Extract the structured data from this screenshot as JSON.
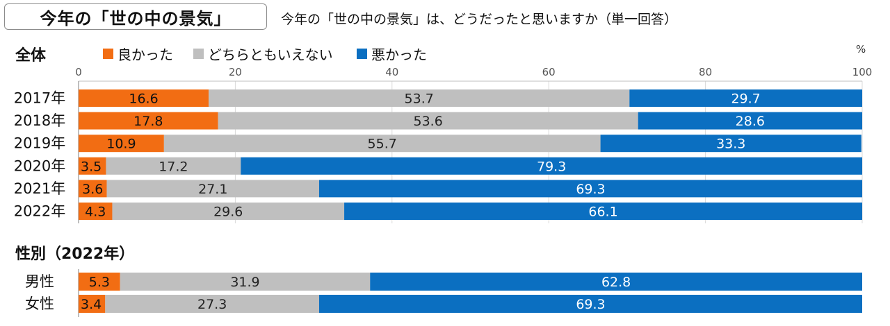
{
  "header": {
    "title": "今年の「世の中の景気」",
    "question": "今年の「世の中の景気」は、どうだったと思いますか（単一回答）"
  },
  "colors": {
    "good": "#f26d13",
    "neutral": "#bfbfbf",
    "bad": "#0b6fc1"
  },
  "chart_data": {
    "type": "bar",
    "orientation": "horizontal-stacked-100",
    "unit_label": "%",
    "xlim": [
      0,
      100
    ],
    "xticks": [
      "0",
      "20",
      "40",
      "60",
      "80",
      "100"
    ],
    "legend": [
      "良かった",
      "どちらともいえない",
      "悪かった"
    ],
    "groups": [
      {
        "section_label": "全体",
        "categories": [
          "2017年",
          "2018年",
          "2019年",
          "2020年",
          "2021年",
          "2022年"
        ],
        "series": [
          {
            "name": "良かった",
            "values": [
              16.6,
              17.8,
              10.9,
              3.5,
              3.6,
              4.3
            ]
          },
          {
            "name": "どちらともいえない",
            "values": [
              53.7,
              53.6,
              55.7,
              17.2,
              27.1,
              29.6
            ]
          },
          {
            "name": "悪かった",
            "values": [
              29.7,
              28.6,
              33.3,
              79.3,
              69.3,
              66.1
            ]
          }
        ]
      },
      {
        "section_label": "性別（2022年）",
        "categories": [
          "男性",
          "女性"
        ],
        "series": [
          {
            "name": "良かった",
            "values": [
              5.3,
              3.4
            ]
          },
          {
            "name": "どちらともいえない",
            "values": [
              31.9,
              27.3
            ]
          },
          {
            "name": "悪かった",
            "values": [
              62.8,
              69.3
            ]
          }
        ]
      }
    ]
  }
}
